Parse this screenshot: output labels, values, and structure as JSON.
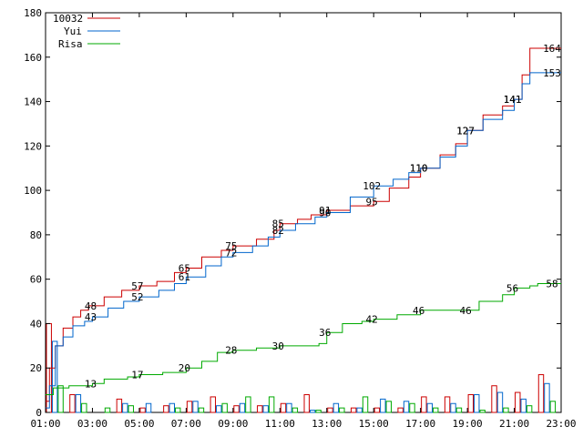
{
  "chart_data": {
    "type": "line",
    "xlim": [
      "01:00",
      "23:00"
    ],
    "ylim": [
      0,
      180
    ],
    "x_ticks": [
      "01:00",
      "03:00",
      "05:00",
      "07:00",
      "09:00",
      "11:00",
      "13:00",
      "15:00",
      "17:00",
      "19:00",
      "21:00",
      "23:00"
    ],
    "y_ticks": [
      0,
      20,
      40,
      60,
      80,
      100,
      120,
      140,
      160,
      180
    ],
    "grid": false,
    "legend_position": "top-left",
    "series": [
      {
        "name": "10032",
        "color": "#cc0000",
        "points": [
          [
            "01:00",
            5
          ],
          [
            "01:10",
            20
          ],
          [
            "01:25",
            30
          ],
          [
            "01:45",
            38
          ],
          [
            "02:10",
            43
          ],
          [
            "02:30",
            46
          ],
          [
            "02:50",
            48
          ],
          [
            "03:30",
            52
          ],
          [
            "04:15",
            55
          ],
          [
            "05:00",
            57
          ],
          [
            "05:45",
            59
          ],
          [
            "06:30",
            63
          ],
          [
            "07:00",
            65
          ],
          [
            "07:40",
            70
          ],
          [
            "08:30",
            73
          ],
          [
            "09:00",
            75
          ],
          [
            "10:00",
            78
          ],
          [
            "10:45",
            82
          ],
          [
            "11:00",
            85
          ],
          [
            "11:45",
            87
          ],
          [
            "12:20",
            89
          ],
          [
            "13:00",
            91
          ],
          [
            "14:00",
            93
          ],
          [
            "15:00",
            95
          ],
          [
            "15:40",
            101
          ],
          [
            "16:30",
            106
          ],
          [
            "17:00",
            110
          ],
          [
            "17:50",
            116
          ],
          [
            "18:30",
            121
          ],
          [
            "19:00",
            127
          ],
          [
            "19:40",
            134
          ],
          [
            "20:30",
            138
          ],
          [
            "21:00",
            141
          ],
          [
            "21:20",
            152
          ],
          [
            "21:40",
            164
          ],
          [
            "23:00",
            164
          ]
        ],
        "labels": [
          {
            "x": "03:00",
            "text": "48"
          },
          {
            "x": "05:00",
            "text": "57"
          },
          {
            "x": "07:00",
            "text": "65"
          },
          {
            "x": "09:00",
            "text": "75"
          },
          {
            "x": "11:00",
            "text": "85"
          },
          {
            "x": "13:00",
            "text": "91"
          },
          {
            "x": "15:00",
            "text": "95"
          },
          {
            "x": "17:00",
            "text": "110"
          },
          {
            "x": "19:00",
            "text": "127"
          },
          {
            "x": "21:00",
            "text": "141"
          },
          {
            "x": "23:00",
            "text": "164"
          }
        ]
      },
      {
        "name": "Yui",
        "color": "#0066cc",
        "points": [
          [
            "01:00",
            2
          ],
          [
            "01:10",
            12
          ],
          [
            "01:25",
            30
          ],
          [
            "01:45",
            34
          ],
          [
            "02:10",
            39
          ],
          [
            "02:40",
            41
          ],
          [
            "03:00",
            43
          ],
          [
            "03:40",
            47
          ],
          [
            "04:20",
            50
          ],
          [
            "05:00",
            52
          ],
          [
            "05:50",
            55
          ],
          [
            "06:30",
            58
          ],
          [
            "07:00",
            61
          ],
          [
            "07:50",
            66
          ],
          [
            "08:30",
            70
          ],
          [
            "09:00",
            72
          ],
          [
            "09:50",
            75
          ],
          [
            "10:30",
            79
          ],
          [
            "11:00",
            82
          ],
          [
            "11:40",
            85
          ],
          [
            "12:30",
            88
          ],
          [
            "13:00",
            90
          ],
          [
            "14:00",
            97
          ],
          [
            "15:00",
            102
          ],
          [
            "15:50",
            105
          ],
          [
            "16:30",
            108
          ],
          [
            "17:00",
            110
          ],
          [
            "17:50",
            115
          ],
          [
            "18:30",
            120
          ],
          [
            "19:00",
            127
          ],
          [
            "19:40",
            132
          ],
          [
            "20:30",
            136
          ],
          [
            "21:00",
            141
          ],
          [
            "21:20",
            148
          ],
          [
            "21:40",
            153
          ],
          [
            "23:00",
            153
          ]
        ],
        "labels": [
          {
            "x": "03:00",
            "text": "43"
          },
          {
            "x": "05:00",
            "text": "52"
          },
          {
            "x": "07:00",
            "text": "61"
          },
          {
            "x": "09:00",
            "text": "72"
          },
          {
            "x": "11:00",
            "text": "82"
          },
          {
            "x": "13:00",
            "text": "90"
          },
          {
            "x": "15:00",
            "text": "102"
          },
          {
            "x": "17:00",
            "text": "110"
          },
          {
            "x": "19:00",
            "text": "127"
          },
          {
            "x": "21:00",
            "text": "141"
          },
          {
            "x": "23:00",
            "text": "153"
          }
        ]
      },
      {
        "name": "Risa",
        "color": "#00aa00",
        "points": [
          [
            "01:00",
            8
          ],
          [
            "01:20",
            11
          ],
          [
            "02:00",
            12
          ],
          [
            "03:00",
            13
          ],
          [
            "03:30",
            15
          ],
          [
            "04:30",
            16
          ],
          [
            "05:00",
            17
          ],
          [
            "06:00",
            18
          ],
          [
            "07:00",
            20
          ],
          [
            "07:40",
            23
          ],
          [
            "08:20",
            27
          ],
          [
            "09:00",
            28
          ],
          [
            "10:00",
            29
          ],
          [
            "11:00",
            30
          ],
          [
            "12:00",
            30
          ],
          [
            "12:40",
            31
          ],
          [
            "13:00",
            36
          ],
          [
            "13:40",
            40
          ],
          [
            "14:30",
            41
          ],
          [
            "15:00",
            42
          ],
          [
            "16:00",
            44
          ],
          [
            "17:00",
            46
          ],
          [
            "18:00",
            46
          ],
          [
            "19:00",
            46
          ],
          [
            "19:30",
            50
          ],
          [
            "20:30",
            53
          ],
          [
            "21:00",
            56
          ],
          [
            "21:40",
            57
          ],
          [
            "22:00",
            58
          ],
          [
            "23:00",
            58
          ]
        ],
        "labels": [
          {
            "x": "03:00",
            "text": "13"
          },
          {
            "x": "05:00",
            "text": "17"
          },
          {
            "x": "07:00",
            "text": "20"
          },
          {
            "x": "09:00",
            "text": "28"
          },
          {
            "x": "11:00",
            "text": "30"
          },
          {
            "x": "13:00",
            "text": "36"
          },
          {
            "x": "15:00",
            "text": "42"
          },
          {
            "x": "17:00",
            "text": "46"
          },
          {
            "x": "19:00",
            "text": "46"
          },
          {
            "x": "21:00",
            "text": "56"
          },
          {
            "x": "23:00",
            "text": "58"
          }
        ]
      }
    ],
    "hourly_bars": [
      {
        "hour": "01:00",
        "values": [
          40,
          32,
          12
        ]
      },
      {
        "hour": "02:00",
        "values": [
          8,
          8,
          4
        ]
      },
      {
        "hour": "03:00",
        "values": [
          0,
          0,
          2
        ]
      },
      {
        "hour": "04:00",
        "values": [
          6,
          4,
          3
        ]
      },
      {
        "hour": "05:00",
        "values": [
          2,
          4,
          0
        ]
      },
      {
        "hour": "06:00",
        "values": [
          3,
          4,
          2
        ]
      },
      {
        "hour": "07:00",
        "values": [
          5,
          5,
          2
        ]
      },
      {
        "hour": "08:00",
        "values": [
          7,
          3,
          4
        ]
      },
      {
        "hour": "09:00",
        "values": [
          3,
          4,
          7
        ]
      },
      {
        "hour": "10:00",
        "values": [
          3,
          3,
          7
        ]
      },
      {
        "hour": "11:00",
        "values": [
          4,
          4,
          2
        ]
      },
      {
        "hour": "12:00",
        "values": [
          8,
          1,
          1
        ]
      },
      {
        "hour": "13:00",
        "values": [
          2,
          4,
          2
        ]
      },
      {
        "hour": "14:00",
        "values": [
          2,
          2,
          7
        ]
      },
      {
        "hour": "15:00",
        "values": [
          2,
          6,
          5
        ]
      },
      {
        "hour": "16:00",
        "values": [
          2,
          5,
          4
        ]
      },
      {
        "hour": "17:00",
        "values": [
          7,
          4,
          2
        ]
      },
      {
        "hour": "18:00",
        "values": [
          7,
          4,
          2
        ]
      },
      {
        "hour": "19:00",
        "values": [
          8,
          8,
          1
        ]
      },
      {
        "hour": "20:00",
        "values": [
          12,
          9,
          2
        ]
      },
      {
        "hour": "21:00",
        "values": [
          9,
          6,
          3
        ]
      },
      {
        "hour": "22:00",
        "values": [
          17,
          13,
          5
        ]
      }
    ]
  }
}
